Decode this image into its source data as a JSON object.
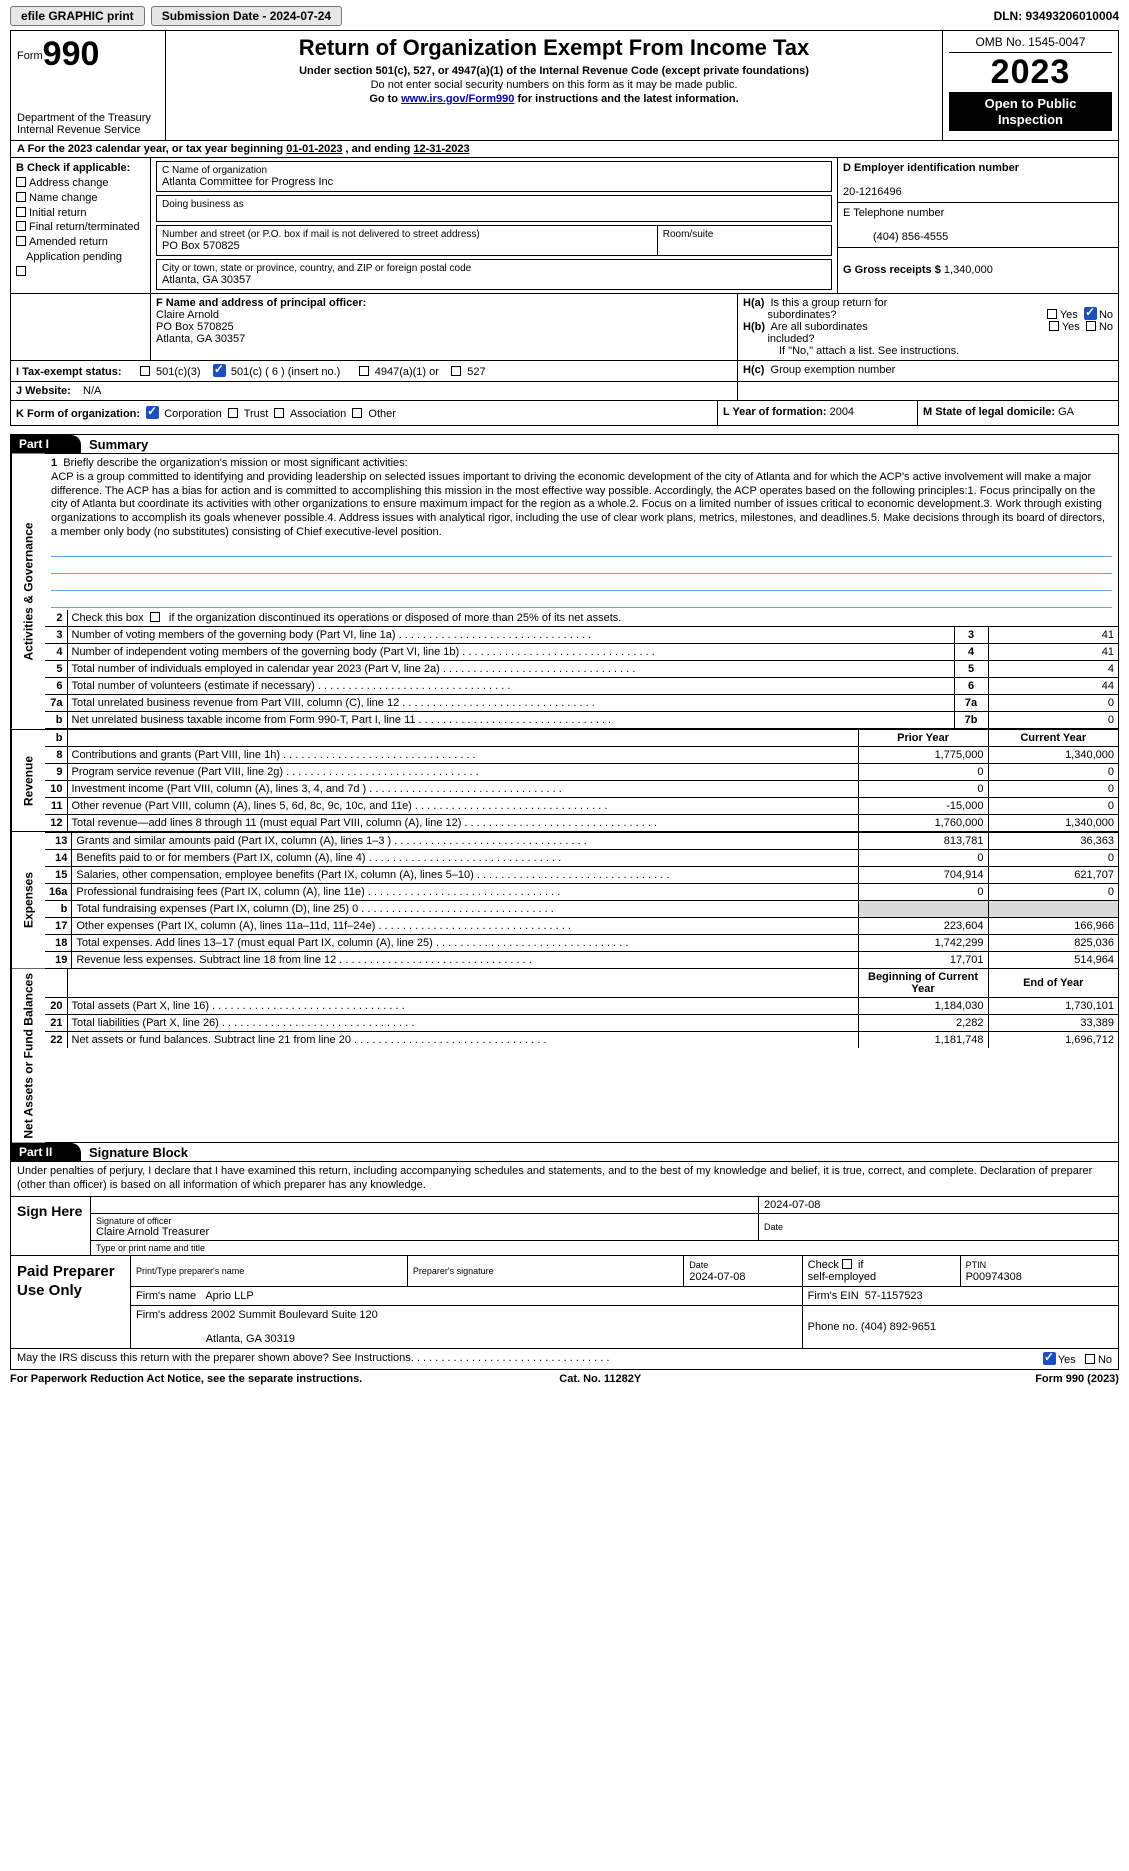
{
  "topstrip": {
    "efile": "efile GRAPHIC print",
    "submission_label": "Submission Date - 2024-07-24",
    "dln_label": "DLN: 93493206010004"
  },
  "header": {
    "form_prefix": "Form",
    "form_number": "990",
    "dept1": "Department of the Treasury",
    "dept2": "Internal Revenue Service",
    "title": "Return of Organization Exempt From Income Tax",
    "sub1": "Under section 501(c), 527, or 4947(a)(1) of the Internal Revenue Code (except private foundations)",
    "sub2": "Do not enter social security numbers on this form as it may be made public.",
    "sub3_pre": "Go to ",
    "sub3_link": "www.irs.gov/Form990",
    "sub3_post": " for instructions and the latest information.",
    "omb": "OMB No. 1545-0047",
    "year": "2023",
    "inspect1": "Open to Public",
    "inspect2": "Inspection"
  },
  "lineA": {
    "pre": "A For the 2023 calendar year, or tax year beginning ",
    "begin": "01-01-2023",
    "mid": " , and ending ",
    "end": "12-31-2023"
  },
  "B": {
    "hdr": "B Check if applicable:",
    "opts": [
      "Address change",
      "Name change",
      "Initial return",
      "Final return/terminated",
      "Amended return",
      "Application pending"
    ]
  },
  "C": {
    "name_lbl": "C Name of organization",
    "name": "Atlanta Committee for Progress Inc",
    "dba_lbl": "Doing business as",
    "dba": "",
    "street_lbl": "Number and street (or P.O. box if mail is not delivered to street address)",
    "street": "PO Box 570825",
    "room_lbl": "Room/suite",
    "room": "",
    "city_lbl": "City or town, state or province, country, and ZIP or foreign postal code",
    "city": "Atlanta, GA  30357"
  },
  "D": {
    "lbl": "D Employer identification number",
    "val": "20-1216496"
  },
  "E": {
    "lbl": "E Telephone number",
    "val": "(404) 856-4555"
  },
  "G": {
    "lbl": "G Gross receipts $",
    "val": "1,340,000"
  },
  "F": {
    "lbl": "F  Name and address of principal officer:",
    "name": "Claire Arnold",
    "addr1": "PO Box 570825",
    "addr2": "Atlanta, GA  30357"
  },
  "H": {
    "a_lbl": "H(a)  Is this a group return for subordinates?",
    "b_lbl": "H(b)  Are all subordinates included?",
    "b_note": "If \"No,\" attach a list. See instructions.",
    "c_lbl": "H(c)  Group exemption number",
    "yes": "Yes",
    "no": "No"
  },
  "I": {
    "lbl": "I  Tax-exempt status:",
    "o1": "501(c)(3)",
    "o2": "501(c) ( 6 ) (insert no.)",
    "o3": "4947(a)(1) or",
    "o4": "527"
  },
  "J": {
    "lbl": "J  Website:",
    "val": "N/A"
  },
  "K": {
    "lbl": "K Form of organization:",
    "o1": "Corporation",
    "o2": "Trust",
    "o3": "Association",
    "o4": "Other"
  },
  "L": {
    "lbl": "L Year of formation:",
    "val": "2004"
  },
  "M": {
    "lbl": "M State of legal domicile:",
    "val": "GA"
  },
  "part1": {
    "hdr": "Part I",
    "title": "Summary"
  },
  "bands": {
    "act": "Activities & Governance",
    "rev": "Revenue",
    "exp": "Expenses",
    "net": "Net Assets or Fund Balances"
  },
  "p1": {
    "l1_lbl": "Briefly describe the organization's mission or most significant activities:",
    "mission": "ACP is a group committed to identifying and providing leadership on selected issues important to driving the economic development of the city of Atlanta and for which the ACP's active involvement will make a major difference. The ACP has a bias for action and is committed to accomplishing this mission in the most effective way possible. Accordingly, the ACP operates based on the following principles:1. Focus principally on the city of Atlanta but coordinate its activities with other organizations to ensure maximum impact for the region as a whole.2. Focus on a limited number of issues critical to economic development.3. Work through existing organizations to accomplish its goals whenever possible.4. Address issues with analytical rigor, including the use of clear work plans, metrics, milestones, and deadlines.5. Make decisions through its board of directors, a member only body (no substitutes) consisting of Chief executive-level position.",
    "l2": "Check this box       if the organization discontinued its operations or disposed of more than 25% of its net assets.",
    "rows_simple": [
      {
        "n": "3",
        "t": "Number of voting members of the governing body (Part VI, line 1a)",
        "box": "3",
        "v": "41"
      },
      {
        "n": "4",
        "t": "Number of independent voting members of the governing body (Part VI, line 1b)",
        "box": "4",
        "v": "41"
      },
      {
        "n": "5",
        "t": "Total number of individuals employed in calendar year 2023 (Part V, line 2a)",
        "box": "5",
        "v": "4"
      },
      {
        "n": "6",
        "t": "Total number of volunteers (estimate if necessary)",
        "box": "6",
        "v": "44"
      },
      {
        "n": "7a",
        "t": "Total unrelated business revenue from Part VIII, column (C), line 12",
        "box": "7a",
        "v": "0"
      },
      {
        "n": "b",
        "bold": false,
        "t": "Net unrelated business taxable income from Form 990-T, Part I, line 11",
        "box": "7b",
        "v": "0"
      }
    ],
    "py": "Prior Year",
    "cy": "Current Year",
    "rev": [
      {
        "n": "8",
        "t": "Contributions and grants (Part VIII, line 1h)",
        "p": "1,775,000",
        "c": "1,340,000"
      },
      {
        "n": "9",
        "t": "Program service revenue (Part VIII, line 2g)",
        "p": "0",
        "c": "0"
      },
      {
        "n": "10",
        "t": "Investment income (Part VIII, column (A), lines 3, 4, and 7d )",
        "p": "0",
        "c": "0"
      },
      {
        "n": "11",
        "t": "Other revenue (Part VIII, column (A), lines 5, 6d, 8c, 9c, 10c, and 11e)",
        "p": "-15,000",
        "c": "0"
      },
      {
        "n": "12",
        "t": "Total revenue—add lines 8 through 11 (must equal Part VIII, column (A), line 12)",
        "p": "1,760,000",
        "c": "1,340,000"
      }
    ],
    "exp": [
      {
        "n": "13",
        "t": "Grants and similar amounts paid (Part IX, column (A), lines 1–3 )",
        "p": "813,781",
        "c": "36,363"
      },
      {
        "n": "14",
        "t": "Benefits paid to or for members (Part IX, column (A), line 4)",
        "p": "0",
        "c": "0"
      },
      {
        "n": "15",
        "t": "Salaries, other compensation, employee benefits (Part IX, column (A), lines 5–10)",
        "p": "704,914",
        "c": "621,707"
      },
      {
        "n": "16a",
        "t": "Professional fundraising fees (Part IX, column (A), line 11e)",
        "p": "0",
        "c": "0"
      },
      {
        "n": "b",
        "t": "Total fundraising expenses (Part IX, column (D), line 25) 0",
        "p": "",
        "c": "",
        "shade": true
      },
      {
        "n": "17",
        "t": "Other expenses (Part IX, column (A), lines 11a–11d, 11f–24e)",
        "p": "223,604",
        "c": "166,966"
      },
      {
        "n": "18",
        "t": "Total expenses. Add lines 13–17 (must equal Part IX, column (A), line 25)",
        "p": "1,742,299",
        "c": "825,036"
      },
      {
        "n": "19",
        "t": "Revenue less expenses. Subtract line 18 from line 12",
        "p": "17,701",
        "c": "514,964"
      }
    ],
    "boy": "Beginning of Current Year",
    "eoy": "End of Year",
    "net": [
      {
        "n": "20",
        "t": "Total assets (Part X, line 16)",
        "p": "1,184,030",
        "c": "1,730,101"
      },
      {
        "n": "21",
        "t": "Total liabilities (Part X, line 26)",
        "p": "2,282",
        "c": "33,389"
      },
      {
        "n": "22",
        "t": "Net assets or fund balances. Subtract line 21 from line 20",
        "p": "1,181,748",
        "c": "1,696,712"
      }
    ]
  },
  "part2": {
    "hdr": "Part II",
    "title": "Signature Block"
  },
  "sig": {
    "decl": "Under penalties of perjury, I declare that I have examined this return, including accompanying schedules and statements, and to the best of my knowledge and belief, it is true, correct, and complete. Declaration of preparer (other than officer) is based on all information of which preparer has any knowledge.",
    "sign_here": "Sign Here",
    "date_top": "2024-07-08",
    "sig_officer_lbl": "Signature of officer",
    "officer_name": "Claire Arnold  Treasurer",
    "type_name_lbl": "Type or print name and title",
    "date_lbl": "Date",
    "paid": "Paid Preparer Use Only",
    "prep_name_lbl": "Print/Type preparer's name",
    "prep_sig_lbl": "Preparer's signature",
    "prep_date": "2024-07-08",
    "self_emp": "Check       if self-employed",
    "ptin_lbl": "PTIN",
    "ptin": "P00974308",
    "firm_name_lbl": "Firm's name",
    "firm_name": "Aprio LLP",
    "firm_ein_lbl": "Firm's EIN",
    "firm_ein": "57-1157523",
    "firm_addr_lbl": "Firm's address",
    "firm_addr1": "2002 Summit Boulevard Suite 120",
    "firm_addr2": "Atlanta, GA  30319",
    "phone_lbl": "Phone no.",
    "phone": "(404) 892-9651",
    "discuss": "May the IRS discuss this return with the preparer shown above? See Instructions.",
    "yes": "Yes",
    "no": "No"
  },
  "foot": {
    "l": "For Paperwork Reduction Act Notice, see the separate instructions.",
    "m": "Cat. No. 11282Y",
    "r": "Form 990 (2023)"
  }
}
